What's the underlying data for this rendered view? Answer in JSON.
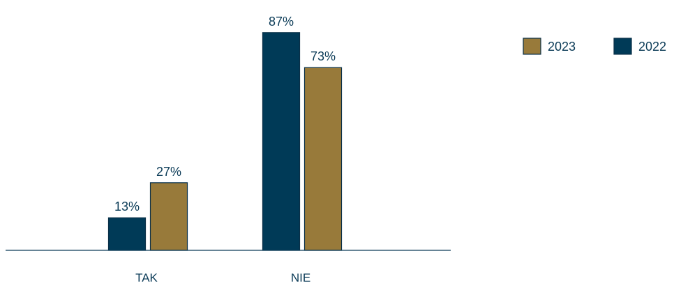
{
  "chart_data": {
    "type": "bar",
    "categories": [
      "TAK",
      "NIE"
    ],
    "series": [
      {
        "name": "2022",
        "values": [
          13,
          87
        ],
        "labels": [
          "13%",
          "87%"
        ],
        "color": "#003a57",
        "stroke": "#0a3048"
      },
      {
        "name": "2023",
        "values": [
          27,
          73
        ],
        "labels": [
          "27%",
          "73%"
        ],
        "color": "#987a3a",
        "stroke": "#0a3048"
      }
    ],
    "legend": [
      {
        "name": "2023",
        "color": "#987a3a"
      },
      {
        "name": "2022",
        "color": "#003a57"
      }
    ],
    "title": "",
    "xlabel": "",
    "ylabel": "",
    "ylim": [
      0,
      100
    ],
    "grid": false,
    "legend_position": "top-right",
    "axis_color": "#0b3b57"
  }
}
